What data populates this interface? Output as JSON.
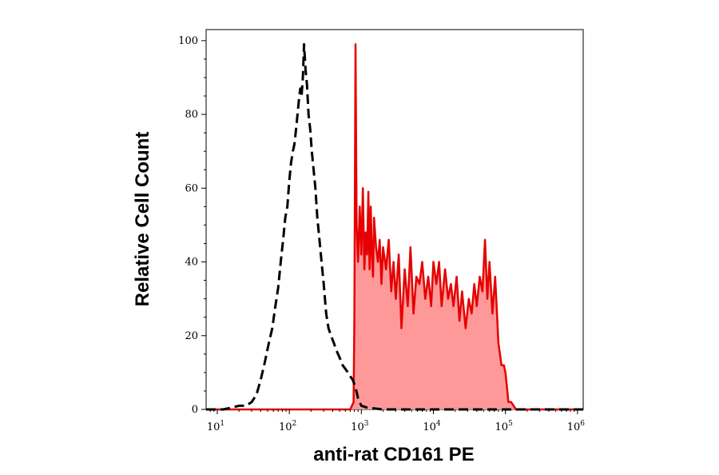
{
  "chart_data": {
    "type": "area",
    "title": "",
    "xlabel": "anti-rat CD161 PE",
    "ylabel": "Relative Cell Count",
    "xscale": "log",
    "xlim": [
      7,
      1200000
    ],
    "ylim": [
      0,
      103
    ],
    "x_ticks": [
      {
        "base": "10",
        "exp": "1",
        "value": 10
      },
      {
        "base": "10",
        "exp": "2",
        "value": 100
      },
      {
        "base": "10",
        "exp": "3",
        "value": 1000
      },
      {
        "base": "10",
        "exp": "4",
        "value": 10000
      },
      {
        "base": "10",
        "exp": "5",
        "value": 100000
      },
      {
        "base": "10",
        "exp": "6",
        "value": 1000000
      }
    ],
    "y_ticks": [
      {
        "label": "0",
        "value": 0
      },
      {
        "label": "20",
        "value": 20
      },
      {
        "label": "40",
        "value": 40
      },
      {
        "label": "60",
        "value": 60
      },
      {
        "label": "80",
        "value": 80
      },
      {
        "label": "100",
        "value": 100
      }
    ],
    "grid": false,
    "legend": "none",
    "series": [
      {
        "style": "dashed-line",
        "color": "#000000",
        "x": [
          7,
          12,
          16,
          20,
          25,
          30,
          35,
          40,
          46,
          52,
          58,
          64,
          70,
          76,
          82,
          88,
          94,
          100,
          106,
          112,
          118,
          124,
          130,
          136,
          142,
          148,
          154,
          160,
          168,
          176,
          185,
          195,
          205,
          215,
          230,
          245,
          262,
          280,
          300,
          325,
          350,
          380,
          415,
          450,
          500,
          550,
          600,
          650,
          700,
          760,
          830,
          900,
          1000,
          1200,
          2000,
          10000,
          100000,
          1000000,
          1200000
        ],
        "y": [
          0,
          0,
          0.5,
          1,
          1,
          2,
          4,
          8,
          13,
          18,
          22,
          28,
          33,
          40,
          46,
          52,
          55,
          62,
          67,
          70,
          72,
          76,
          80,
          84,
          87,
          85,
          90,
          99,
          92,
          88,
          80,
          76,
          70,
          66,
          60,
          52,
          46,
          40,
          34,
          26,
          22,
          20,
          18,
          16,
          14,
          12,
          11,
          10,
          9,
          8,
          6,
          3,
          1,
          0.5,
          0,
          0,
          0,
          0,
          0
        ]
      },
      {
        "style": "filled-area",
        "color": "#e60000",
        "fill": "#ff9999",
        "x": [
          7,
          700,
          780,
          800,
          830,
          860,
          900,
          950,
          1000,
          1050,
          1100,
          1150,
          1200,
          1250,
          1300,
          1350,
          1400,
          1450,
          1500,
          1600,
          1700,
          1800,
          1900,
          2000,
          2200,
          2400,
          2600,
          2800,
          3000,
          3300,
          3600,
          4000,
          4400,
          4800,
          5300,
          5800,
          6400,
          7000,
          7700,
          8500,
          9300,
          10000,
          11000,
          12000,
          13000,
          14500,
          16000,
          17500,
          19000,
          21000,
          23000,
          25000,
          28000,
          31000,
          34000,
          37000,
          40000,
          44000,
          48000,
          52000,
          56000,
          60000,
          66000,
          72000,
          80000,
          88000,
          95000,
          100000,
          110000,
          120000,
          140000,
          170000,
          1200000
        ],
        "y": [
          0,
          0,
          2,
          25,
          99,
          50,
          40,
          55,
          42,
          60,
          38,
          48,
          42,
          59,
          38,
          55,
          42,
          36,
          52,
          44,
          40,
          46,
          34,
          44,
          38,
          46,
          32,
          40,
          30,
          42,
          22,
          38,
          28,
          44,
          26,
          36,
          34,
          40,
          30,
          36,
          28,
          40,
          34,
          40,
          28,
          38,
          30,
          34,
          28,
          36,
          24,
          32,
          22,
          30,
          26,
          34,
          28,
          36,
          32,
          46,
          30,
          40,
          26,
          36,
          18,
          12,
          12,
          10,
          2,
          2,
          0,
          0,
          0
        ]
      }
    ]
  }
}
